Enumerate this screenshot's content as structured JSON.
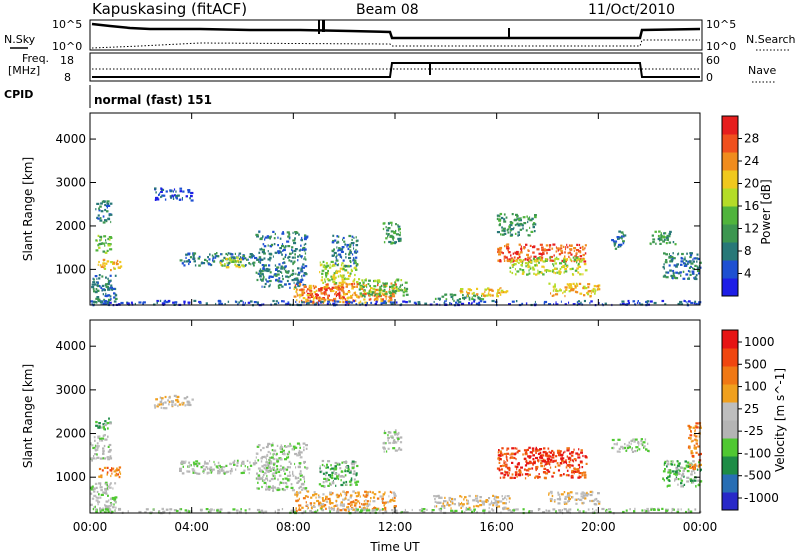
{
  "header": {
    "station": "Kapuskasing (fitACF)",
    "beam": "Beam 08",
    "date": "11/Oct/2010"
  },
  "strip_panels": {
    "nsky_label": "N.Sky",
    "nsky_ticks": [
      "10^5",
      "10^0"
    ],
    "nsearch_label": "N.Search",
    "nsearch_ticks": [
      "10^5",
      "10^0"
    ],
    "freq_label_1": "Freq.",
    "freq_label_2": "[MHz]",
    "freq_ticks": [
      "18",
      "8"
    ],
    "nave_label": "Nave",
    "nave_ticks": [
      "60",
      "0"
    ],
    "cpid_label": "CPID",
    "cpid_value": "normal (fast) 151"
  },
  "colors": {
    "power": [
      "#1e1ee6",
      "#1e50d2",
      "#287878",
      "#3c9650",
      "#50b43c",
      "#b4dc28",
      "#f0c81e",
      "#f08c1e",
      "#f0501e",
      "#e61e1e"
    ],
    "velocity": [
      "#2828c8",
      "#286eb4",
      "#1e8c46",
      "#50c832",
      "#b4b4b4",
      "#bebebe",
      "#f0a01e",
      "#f07814",
      "#f0460f",
      "#e61414"
    ]
  },
  "chart_data": [
    {
      "type": "heatmap",
      "name": "power-panel",
      "ylabel": "Slant Range [km]",
      "xlabel": "",
      "x_range_hours": [
        0,
        24
      ],
      "x_ticks": [
        "00:00",
        "04:00",
        "08:00",
        "12:00",
        "16:00",
        "20:00",
        "00:00"
      ],
      "ylim": [
        180,
        4600
      ],
      "y_ticks": [
        1000,
        2000,
        3000,
        4000
      ],
      "colorbar_label": "Power [dB]",
      "colorbar_ticks": [
        "4",
        "8",
        "12",
        "16",
        "20",
        "24",
        "28"
      ],
      "regions": [
        {
          "x": [
            0.0,
            1.0
          ],
          "y": [
            200,
            900
          ],
          "level": 2
        },
        {
          "x": [
            0.2,
            0.8
          ],
          "y": [
            1400,
            1800
          ],
          "level": 4
        },
        {
          "x": [
            0.2,
            0.8
          ],
          "y": [
            2100,
            2600
          ],
          "level": 2
        },
        {
          "x": [
            0.3,
            1.2
          ],
          "y": [
            1000,
            1250
          ],
          "level": 6
        },
        {
          "x": [
            2.5,
            4.0
          ],
          "y": [
            2600,
            2900
          ],
          "level": 1
        },
        {
          "x": [
            3.5,
            6.5
          ],
          "y": [
            1100,
            1400
          ],
          "level": 2
        },
        {
          "x": [
            5.0,
            6.0
          ],
          "y": [
            1050,
            1300
          ],
          "level": 5
        },
        {
          "x": [
            6.5,
            8.5
          ],
          "y": [
            600,
            1900
          ],
          "level": 2
        },
        {
          "x": [
            8.5,
            10.0
          ],
          "y": [
            350,
            650
          ],
          "level": 9
        },
        {
          "x": [
            8.0,
            12.0
          ],
          "y": [
            250,
            700
          ],
          "level": 7
        },
        {
          "x": [
            9.0,
            10.5
          ],
          "y": [
            700,
            1200
          ],
          "level": 5
        },
        {
          "x": [
            9.5,
            10.5
          ],
          "y": [
            1100,
            1800
          ],
          "level": 2
        },
        {
          "x": [
            10.5,
            12.5
          ],
          "y": [
            400,
            800
          ],
          "level": 4
        },
        {
          "x": [
            11.5,
            12.2
          ],
          "y": [
            1600,
            2100
          ],
          "level": 3
        },
        {
          "x": [
            13.5,
            15.5
          ],
          "y": [
            300,
            450
          ],
          "level": 3
        },
        {
          "x": [
            14.5,
            16.5
          ],
          "y": [
            400,
            600
          ],
          "level": 6
        },
        {
          "x": [
            16.0,
            17.5
          ],
          "y": [
            1800,
            2300
          ],
          "level": 3
        },
        {
          "x": [
            16.0,
            19.5
          ],
          "y": [
            1200,
            1600
          ],
          "level": 8
        },
        {
          "x": [
            16.5,
            19.5
          ],
          "y": [
            900,
            1300
          ],
          "level": 5
        },
        {
          "x": [
            18.0,
            20.0
          ],
          "y": [
            400,
            700
          ],
          "level": 6
        },
        {
          "x": [
            20.5,
            21.0
          ],
          "y": [
            1500,
            1900
          ],
          "level": 2
        },
        {
          "x": [
            22.0,
            23.0
          ],
          "y": [
            1600,
            1900
          ],
          "level": 3
        },
        {
          "x": [
            22.5,
            24.0
          ],
          "y": [
            800,
            1400
          ],
          "level": 2
        },
        {
          "x": [
            0.0,
            24.0
          ],
          "y": [
            200,
            300
          ],
          "level": 1
        }
      ]
    },
    {
      "type": "heatmap",
      "name": "velocity-panel",
      "ylabel": "Slant Range [km]",
      "xlabel": "Time UT",
      "x_range_hours": [
        0,
        24
      ],
      "x_ticks": [
        "00:00",
        "04:00",
        "08:00",
        "12:00",
        "16:00",
        "20:00",
        "00:00"
      ],
      "ylim": [
        180,
        4600
      ],
      "y_ticks": [
        1000,
        2000,
        3000,
        4000
      ],
      "colorbar_label": "Velocity [m s^-1]",
      "colorbar_ticks": [
        "1000",
        "500",
        "100",
        "25",
        "-25",
        "-100",
        "-500",
        "-1000"
      ],
      "regions": [
        {
          "x": [
            0.0,
            1.0
          ],
          "y": [
            200,
            900
          ],
          "level": 4
        },
        {
          "x": [
            0.0,
            0.8
          ],
          "y": [
            1400,
            2000
          ],
          "level": 4
        },
        {
          "x": [
            0.3,
            1.2
          ],
          "y": [
            1000,
            1250
          ],
          "level": 7
        },
        {
          "x": [
            0.2,
            0.8
          ],
          "y": [
            2100,
            2400
          ],
          "level": 3
        },
        {
          "x": [
            2.5,
            4.0
          ],
          "y": [
            2600,
            2900
          ],
          "level": 5
        },
        {
          "x": [
            3.5,
            6.5
          ],
          "y": [
            1100,
            1400
          ],
          "level": 4
        },
        {
          "x": [
            6.5,
            8.5
          ],
          "y": [
            700,
            1800
          ],
          "level": 4
        },
        {
          "x": [
            8.0,
            12.0
          ],
          "y": [
            250,
            700
          ],
          "level": 6
        },
        {
          "x": [
            9.0,
            10.5
          ],
          "y": [
            800,
            1400
          ],
          "level": 3
        },
        {
          "x": [
            11.5,
            12.2
          ],
          "y": [
            1600,
            2100
          ],
          "level": 4
        },
        {
          "x": [
            13.5,
            16.5
          ],
          "y": [
            300,
            600
          ],
          "level": 5
        },
        {
          "x": [
            16.0,
            19.5
          ],
          "y": [
            1000,
            1700
          ],
          "level": 8
        },
        {
          "x": [
            17.0,
            19.0
          ],
          "y": [
            1300,
            1600
          ],
          "level": 9
        },
        {
          "x": [
            18.0,
            20.0
          ],
          "y": [
            400,
            700
          ],
          "level": 5
        },
        {
          "x": [
            20.5,
            22.0
          ],
          "y": [
            1600,
            1900
          ],
          "level": 4
        },
        {
          "x": [
            22.5,
            24.0
          ],
          "y": [
            800,
            1400
          ],
          "level": 3
        },
        {
          "x": [
            23.5,
            24.0
          ],
          "y": [
            1200,
            2300
          ],
          "level": 7
        },
        {
          "x": [
            0.0,
            24.0
          ],
          "y": [
            200,
            300
          ],
          "level": 4
        }
      ]
    }
  ]
}
